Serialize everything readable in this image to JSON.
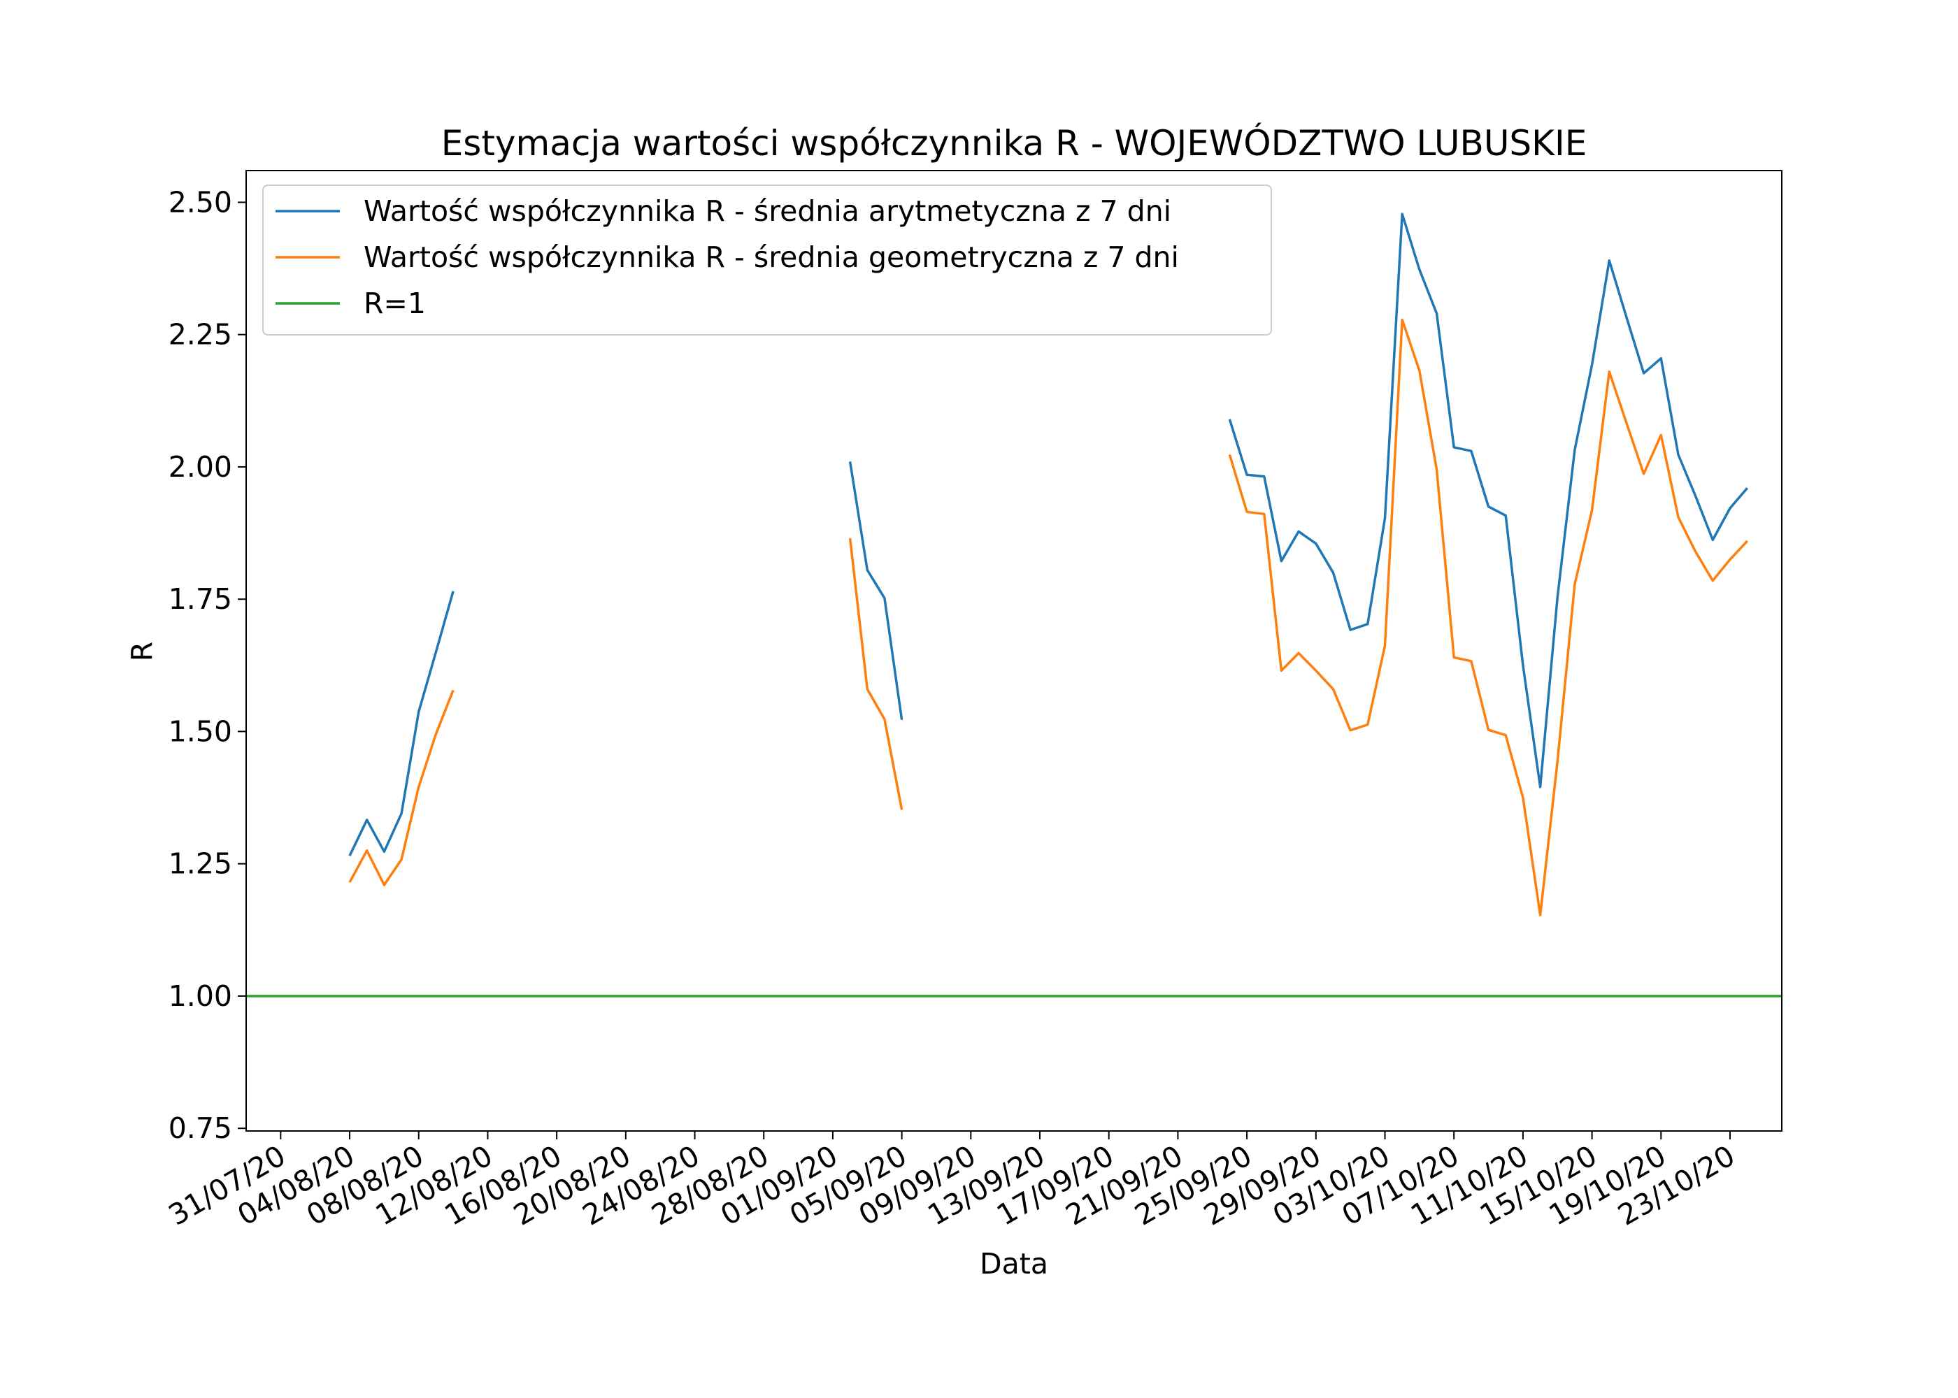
{
  "chart_data": {
    "type": "line",
    "title": "Estymacja wartości współczynnika R - WOJEWÓDZTWO LUBUSKIE",
    "xlabel": "Data",
    "ylabel": "R",
    "x_tick_labels": [
      "31/07/20",
      "04/08/20",
      "08/08/20",
      "12/08/20",
      "16/08/20",
      "20/08/20",
      "24/08/20",
      "28/08/20",
      "01/09/20",
      "05/09/20",
      "09/09/20",
      "13/09/20",
      "17/09/20",
      "21/09/20",
      "25/09/20",
      "29/09/20",
      "03/10/20",
      "07/10/20",
      "11/10/20",
      "15/10/20",
      "19/10/20",
      "23/10/20"
    ],
    "y_tick_labels": [
      "0.75",
      "1.00",
      "1.25",
      "1.50",
      "1.75",
      "2.00",
      "2.25",
      "2.50"
    ],
    "xlim": [
      "2020-07-29",
      "2020-10-26"
    ],
    "ylim": [
      0.745,
      2.56
    ],
    "grid": false,
    "legend_position": "top-left",
    "series": [
      {
        "name": "Wartość współczynnika R - średnia arytmetyczna z 7 dni",
        "color": "#1f77b4",
        "points": [
          [
            "2020-08-04",
            1.265
          ],
          [
            "2020-08-05",
            1.333
          ],
          [
            "2020-08-06",
            1.273
          ],
          [
            "2020-08-07",
            1.345
          ],
          [
            "2020-08-08",
            1.537
          ],
          [
            "2020-08-09",
            1.65
          ],
          [
            "2020-08-10",
            1.765
          ],
          [
            "2020-09-02",
            2.01
          ],
          [
            "2020-09-03",
            1.805
          ],
          [
            "2020-09-04",
            1.752
          ],
          [
            "2020-09-05",
            1.522
          ],
          [
            "2020-09-24",
            2.09
          ],
          [
            "2020-09-25",
            1.985
          ],
          [
            "2020-09-26",
            1.982
          ],
          [
            "2020-09-27",
            1.822
          ],
          [
            "2020-09-28",
            1.878
          ],
          [
            "2020-09-29",
            1.855
          ],
          [
            "2020-09-30",
            1.8
          ],
          [
            "2020-10-01",
            1.692
          ],
          [
            "2020-10-02",
            1.703
          ],
          [
            "2020-10-03",
            1.903
          ],
          [
            "2020-10-04",
            2.478
          ],
          [
            "2020-10-05",
            2.373
          ],
          [
            "2020-10-06",
            2.29
          ],
          [
            "2020-10-07",
            2.037
          ],
          [
            "2020-10-08",
            2.03
          ],
          [
            "2020-10-09",
            1.925
          ],
          [
            "2020-10-10",
            1.908
          ],
          [
            "2020-10-11",
            1.625
          ],
          [
            "2020-10-12",
            1.395
          ],
          [
            "2020-10-13",
            1.753
          ],
          [
            "2020-10-14",
            2.032
          ],
          [
            "2020-10-15",
            2.193
          ],
          [
            "2020-10-16",
            2.39
          ],
          [
            "2020-10-17",
            2.283
          ],
          [
            "2020-10-18",
            2.177
          ],
          [
            "2020-10-19",
            2.205
          ],
          [
            "2020-10-20",
            2.023
          ],
          [
            "2020-10-21",
            1.945
          ],
          [
            "2020-10-22",
            1.862
          ],
          [
            "2020-10-23",
            1.922
          ],
          [
            "2020-10-24",
            1.96
          ]
        ]
      },
      {
        "name": "Wartość współczynnika R - średnia geometryczna z 7 dni",
        "color": "#ff7f0e",
        "points": [
          [
            "2020-08-04",
            1.215
          ],
          [
            "2020-08-05",
            1.275
          ],
          [
            "2020-08-06",
            1.21
          ],
          [
            "2020-08-07",
            1.258
          ],
          [
            "2020-08-08",
            1.395
          ],
          [
            "2020-08-09",
            1.495
          ],
          [
            "2020-08-10",
            1.578
          ],
          [
            "2020-09-02",
            1.865
          ],
          [
            "2020-09-03",
            1.58
          ],
          [
            "2020-09-04",
            1.523
          ],
          [
            "2020-09-05",
            1.352
          ],
          [
            "2020-09-24",
            2.023
          ],
          [
            "2020-09-25",
            1.915
          ],
          [
            "2020-09-26",
            1.911
          ],
          [
            "2020-09-27",
            1.615
          ],
          [
            "2020-09-28",
            1.648
          ],
          [
            "2020-09-29",
            1.615
          ],
          [
            "2020-09-30",
            1.58
          ],
          [
            "2020-10-01",
            1.502
          ],
          [
            "2020-10-02",
            1.513
          ],
          [
            "2020-10-03",
            1.662
          ],
          [
            "2020-10-04",
            2.278
          ],
          [
            "2020-10-05",
            2.182
          ],
          [
            "2020-10-06",
            1.995
          ],
          [
            "2020-10-07",
            1.64
          ],
          [
            "2020-10-08",
            1.633
          ],
          [
            "2020-10-09",
            1.503
          ],
          [
            "2020-10-10",
            1.493
          ],
          [
            "2020-10-11",
            1.375
          ],
          [
            "2020-10-12",
            1.153
          ],
          [
            "2020-10-13",
            1.443
          ],
          [
            "2020-10-14",
            1.778
          ],
          [
            "2020-10-15",
            1.918
          ],
          [
            "2020-10-16",
            2.18
          ],
          [
            "2020-10-17",
            2.083
          ],
          [
            "2020-10-18",
            1.987
          ],
          [
            "2020-10-19",
            2.06
          ],
          [
            "2020-10-20",
            1.905
          ],
          [
            "2020-10-21",
            1.84
          ],
          [
            "2020-10-22",
            1.785
          ],
          [
            "2020-10-23",
            1.825
          ],
          [
            "2020-10-24",
            1.86
          ]
        ]
      },
      {
        "name": "R=1",
        "color": "#2ca02c",
        "points": [
          [
            "2020-07-29",
            1.0
          ],
          [
            "2020-10-26",
            1.0
          ]
        ]
      }
    ]
  }
}
